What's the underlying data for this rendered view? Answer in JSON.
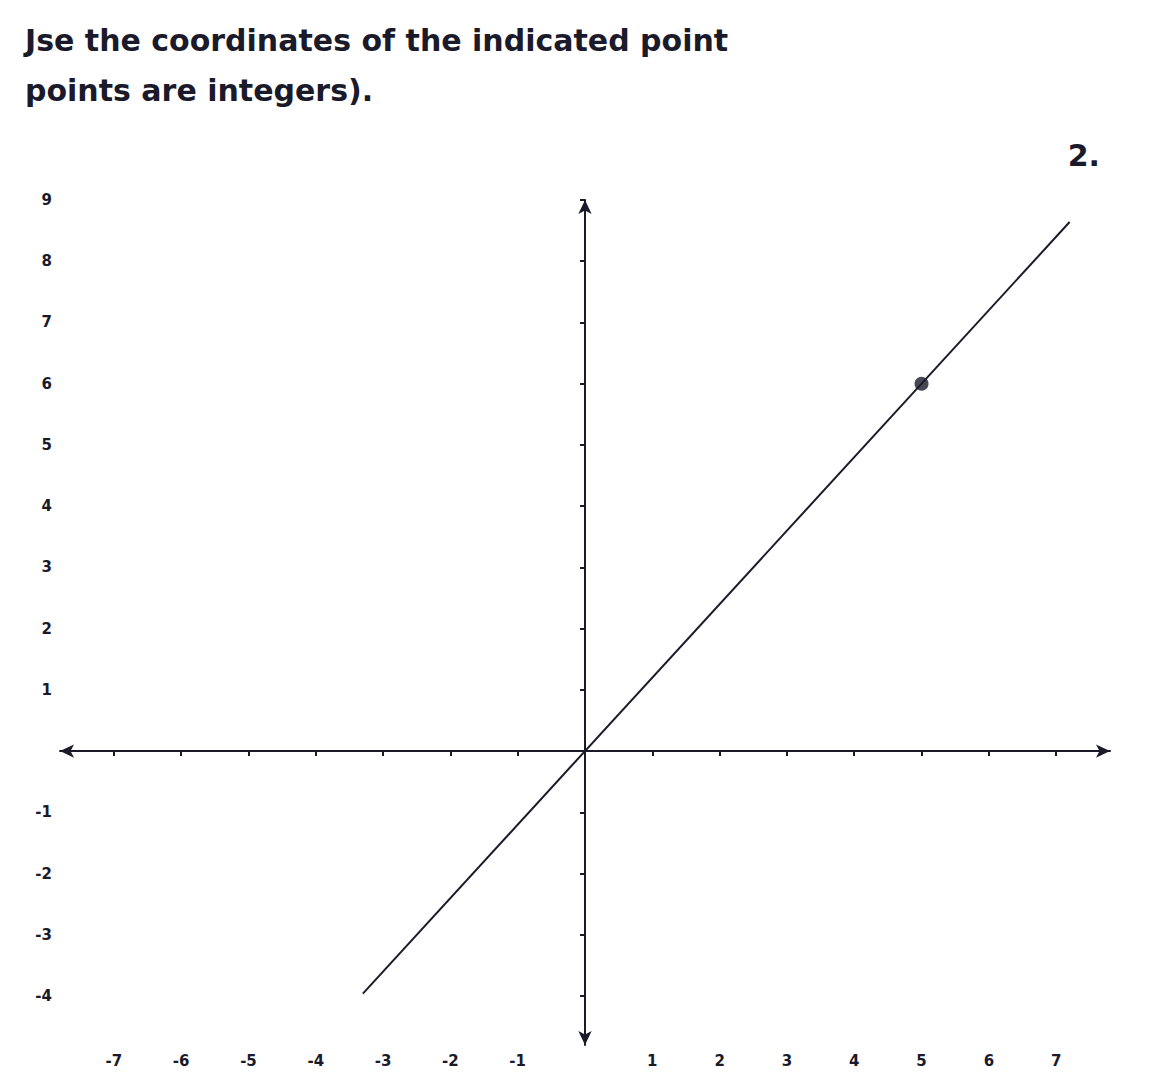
{
  "chart_data": {
    "type": "line",
    "title": "Jse the coordinates of the indicated point",
    "subtitle": "points are integers).",
    "annotations": [
      {
        "text": "2."
      }
    ],
    "series": [
      {
        "type": "line",
        "color": "#1a1a2a",
        "x": [
          -3.3,
          7.2
        ],
        "values": [
          -3.96,
          8.64
        ]
      },
      {
        "type": "scatter",
        "color": "#1a1a2a",
        "x": [
          5
        ],
        "values": [
          6
        ]
      }
    ],
    "xlim": [
      -7.8,
      7.8
    ],
    "xticks": [
      -7,
      -6,
      -5,
      -4,
      -3,
      -2,
      -1,
      1,
      2,
      3,
      4,
      5,
      6,
      7
    ],
    "ylim": [
      -4.8,
      9.0
    ],
    "yticks": [
      -4,
      -3,
      -2,
      -1,
      1,
      2,
      3,
      4,
      5,
      6,
      7,
      8,
      9
    ],
    "grid": false
  }
}
